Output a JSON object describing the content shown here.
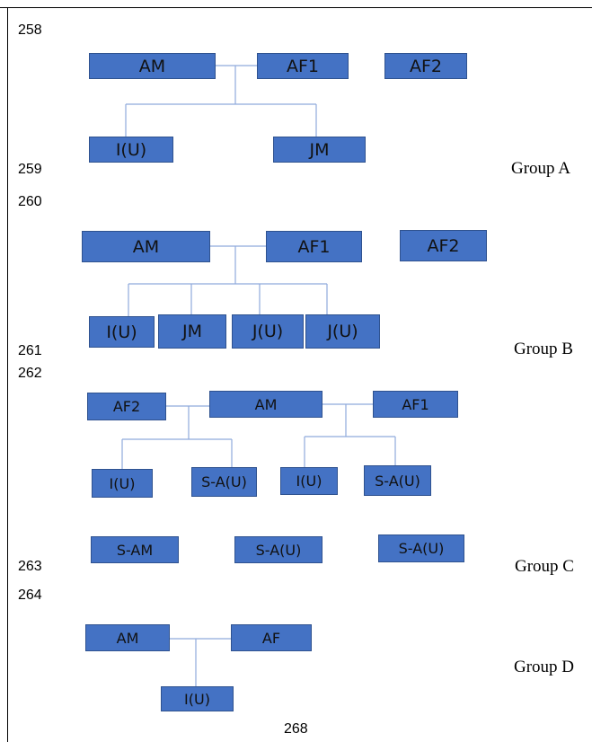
{
  "line_numbers": {
    "n258": "258",
    "n259": "259",
    "n260": "260",
    "n261": "261",
    "n262": "262",
    "n263": "263",
    "n264": "264"
  },
  "page_number": "268",
  "groups": {
    "a": {
      "label": "Group A",
      "nodes": {
        "am": "AM",
        "af1": "AF1",
        "af2": "AF2",
        "iu": "I(U)",
        "jm": "JM"
      }
    },
    "b": {
      "label": "Group B",
      "nodes": {
        "am": "AM",
        "af1": "AF1",
        "af2": "AF2",
        "iu": "I(U)",
        "jm": "JM",
        "ju1": "J(U)",
        "ju2": "J(U)"
      }
    },
    "c": {
      "label": "Group C",
      "nodes": {
        "af2": "AF2",
        "am": "AM",
        "af1": "AF1",
        "iu_left": "I(U)",
        "sau_left": "S-A(U)",
        "iu_right": "I(U)",
        "sau_right": "S-A(U)",
        "sam": "S-AM",
        "sau_bottom_mid": "S-A(U)",
        "sau_bottom_right": "S-A(U)"
      }
    },
    "d": {
      "label": "Group D",
      "nodes": {
        "am": "AM",
        "af": "AF",
        "iu": "I(U)"
      }
    }
  },
  "colors": {
    "node_fill": "#4472c4",
    "node_border": "#2f528f",
    "connector": "#8faadc"
  }
}
